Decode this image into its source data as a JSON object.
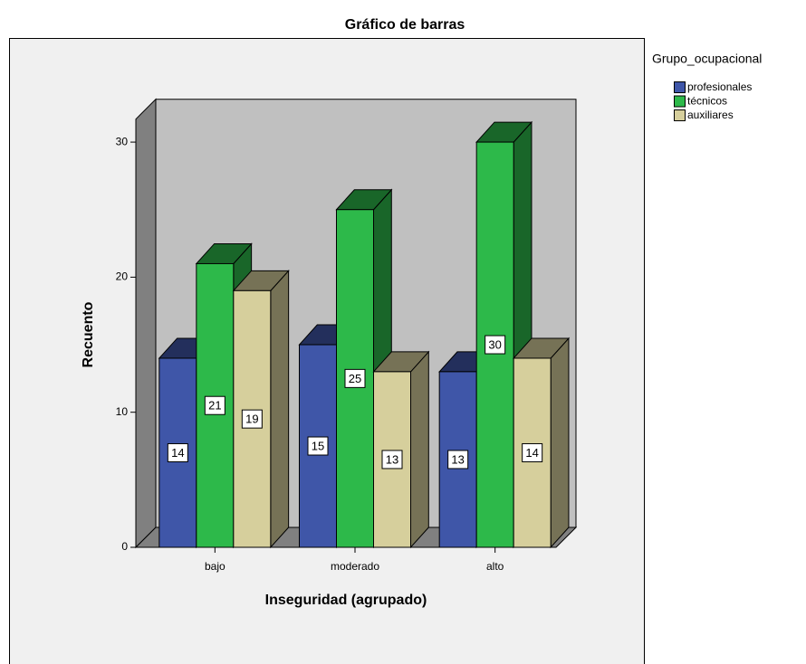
{
  "chart_data": {
    "type": "bar3d",
    "title": "Gráfico de barras",
    "x_label": "Inseguridad (agrupado)",
    "y_label": "Recuento",
    "legend_title": "Grupo_ocupacional",
    "categories": [
      "bajo",
      "moderado",
      "alto"
    ],
    "series": [
      {
        "name": "profesionales",
        "color": "#3f56a8",
        "values": [
          14,
          15,
          13
        ]
      },
      {
        "name": "técnicos",
        "color": "#2db94a",
        "values": [
          21,
          25,
          30
        ]
      },
      {
        "name": "auxiliares",
        "color": "#d6cf9c",
        "values": [
          19,
          13,
          14
        ]
      }
    ],
    "ylim": [
      0,
      31.7
    ],
    "yticks": [
      0,
      10,
      20,
      30
    ],
    "legend": "right"
  }
}
